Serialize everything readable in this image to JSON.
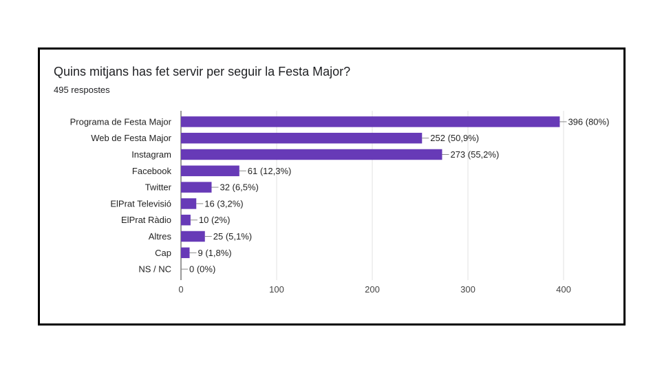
{
  "chart_data": {
    "type": "bar",
    "orientation": "horizontal",
    "title": "Quins mitjans has fet servir per seguir la Festa Major?",
    "subtitle": "495 respostes",
    "categories": [
      "Programa de Festa Major",
      "Web de Festa Major",
      "Instagram",
      "Facebook",
      "Twitter",
      "ElPrat Televisió",
      "ElPrat Ràdio",
      "Altres",
      "Cap",
      "NS / NC"
    ],
    "values": [
      396,
      252,
      273,
      61,
      32,
      16,
      10,
      25,
      9,
      0
    ],
    "value_labels": [
      "396 (80%)",
      "252 (50,9%)",
      "273 (55,2%)",
      "61 (12,3%)",
      "32 (6,5%)",
      "16 (3,2%)",
      "10 (2%)",
      "25 (5,1%)",
      "9 (1,8%)",
      "0 (0%)"
    ],
    "xlim": [
      0,
      400
    ],
    "xticks": [
      0,
      100,
      200,
      300,
      400
    ],
    "grid": true,
    "bar_color": "#673AB7"
  }
}
